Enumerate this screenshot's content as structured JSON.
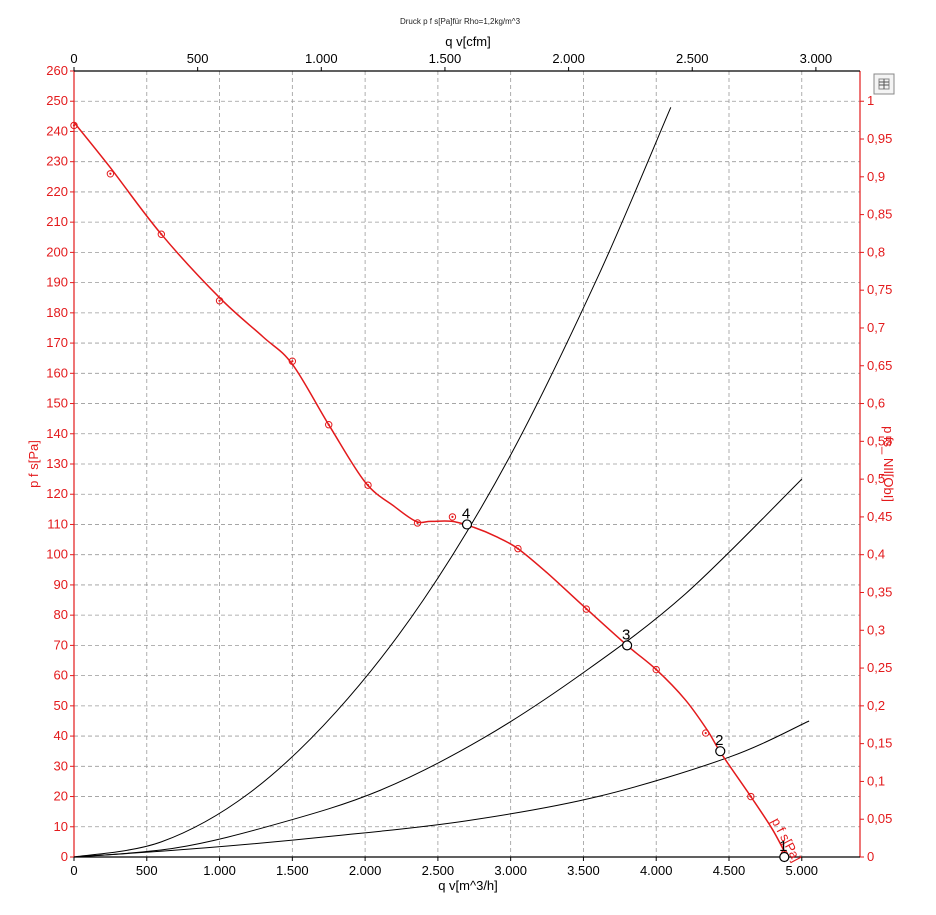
{
  "chart_data": {
    "type": "line",
    "title": "Druck p f s[Pa]für Rho=1,2kg/m^3",
    "x_top_label": "q v[cfm]",
    "x_top_ticks": [
      "0",
      "500",
      "1.000",
      "1.500",
      "2.000",
      "2.500",
      "3.000"
    ],
    "x_top_tick_values": [
      0,
      500,
      1000,
      1500,
      2000,
      2500,
      3000
    ],
    "x_bottom_label": "q v[m^3/h]",
    "x_bottom_ticks": [
      "0",
      "500",
      "1.000",
      "1.500",
      "2.000",
      "2.500",
      "3.000",
      "3.500",
      "4.000",
      "4.500",
      "5.000"
    ],
    "x_bottom_tick_values": [
      0,
      500,
      1000,
      1500,
      2000,
      2500,
      3000,
      3500,
      4000,
      4500,
      5000
    ],
    "xlim": [
      0,
      5400
    ],
    "y_left_label": "p f s[Pa]",
    "y_left_ticks": [
      "0",
      "10",
      "20",
      "30",
      "40",
      "50",
      "60",
      "70",
      "80",
      "90",
      "100",
      "110",
      "120",
      "130",
      "140",
      "150",
      "160",
      "170",
      "180",
      "190",
      "200",
      "210",
      "220",
      "230",
      "240",
      "250",
      "260"
    ],
    "y_left_tick_values": [
      0,
      10,
      20,
      30,
      40,
      50,
      60,
      70,
      80,
      90,
      100,
      110,
      120,
      130,
      140,
      150,
      160,
      170,
      180,
      190,
      200,
      210,
      220,
      230,
      240,
      250,
      260
    ],
    "ylim": [
      0,
      260
    ],
    "y_right_label": "p fs_ NIl[ObI]",
    "y_right_ticks": [
      "0",
      "0,05",
      "0,1",
      "0,15",
      "0,2",
      "0,25",
      "0,3",
      "0,35",
      "0,4",
      "0,45",
      "0,5",
      "0,55",
      "0,6",
      "0,65",
      "0,7",
      "0,75",
      "0,8",
      "0,85",
      "0,9",
      "0,95",
      "1"
    ],
    "y_right_tick_values": [
      0,
      0.05,
      0.1,
      0.15,
      0.2,
      0.25,
      0.3,
      0.35,
      0.4,
      0.45,
      0.5,
      0.55,
      0.6,
      0.65,
      0.7,
      0.75,
      0.8,
      0.85,
      0.9,
      0.95,
      1.0
    ],
    "y_right_lim": [
      0,
      1.04
    ],
    "grid": true,
    "series": [
      {
        "name": "p f s[Pa]",
        "color": "#e31a1c",
        "x": [
          0,
          250,
          600,
          1000,
          1300,
          1500,
          1750,
          2000,
          2200,
          2350,
          2450,
          2600,
          2750,
          2900,
          3050,
          3250,
          3500,
          3800,
          4000,
          4200,
          4350,
          4450,
          4650,
          4800,
          4900
        ],
        "y": [
          243,
          228,
          206,
          185,
          172,
          163,
          143,
          124,
          116,
          111,
          111,
          111,
          109,
          106,
          102,
          94,
          83,
          70,
          62,
          52,
          42,
          34,
          20,
          9,
          0
        ],
        "markers_x": [
          0,
          250,
          600,
          1000,
          1500,
          1750,
          2020,
          2360,
          2600,
          3050,
          3520,
          4000,
          4340,
          4650,
          4880
        ],
        "markers_y": [
          242,
          226,
          206,
          184,
          164,
          143,
          123,
          110.5,
          112.5,
          102,
          82,
          62,
          41,
          20,
          1
        ]
      }
    ],
    "system_curves": [
      {
        "x": [
          0,
          600,
          1200,
          1800,
          2400,
          3000,
          3600,
          4100
        ],
        "y": [
          0,
          5,
          21,
          48,
          85,
          133,
          192,
          248
        ]
      },
      {
        "x": [
          0,
          700,
          1400,
          2100,
          2800,
          3500,
          4200,
          5000
        ],
        "y": [
          0,
          3,
          11,
          22,
          39,
          61,
          87,
          125
        ]
      },
      {
        "x": [
          0,
          900,
          1800,
          2700,
          3600,
          4500,
          5050
        ],
        "y": [
          0,
          3,
          7,
          12,
          20,
          33,
          45
        ]
      }
    ],
    "operating_points": [
      {
        "label": "1",
        "x": 4880,
        "y": 0
      },
      {
        "label": "2",
        "x": 4440,
        "y": 35
      },
      {
        "label": "3",
        "x": 3800,
        "y": 70
      },
      {
        "label": "4",
        "x": 2700,
        "y": 110
      }
    ]
  }
}
